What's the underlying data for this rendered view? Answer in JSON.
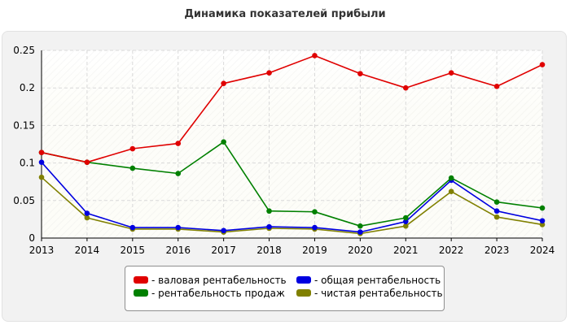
{
  "title": "Динамика показателей прибыли",
  "chart_data": {
    "type": "line",
    "title": "Динамика показателей прибыли",
    "xlabel": "",
    "ylabel": "",
    "x": [
      "2013",
      "2014",
      "2015",
      "2016",
      "2017",
      "2018",
      "2019",
      "2020",
      "2021",
      "2022",
      "2023",
      "2024"
    ],
    "ylim": [
      0,
      0.25
    ],
    "yticks": [
      "0",
      "0.05",
      "0.1",
      "0.15",
      "0.2",
      "0.25"
    ],
    "grid": true,
    "legend_position": "bottom-center",
    "series": [
      {
        "name": "- валовая рентабельность",
        "color": "#e00000",
        "values": [
          0.114,
          0.101,
          0.119,
          0.126,
          0.206,
          0.22,
          0.243,
          0.219,
          0.2,
          0.22,
          0.202,
          0.231
        ]
      },
      {
        "name": "- общая рентабельность",
        "color": "#0000e0",
        "values": [
          0.101,
          0.033,
          0.014,
          0.014,
          0.01,
          0.015,
          0.014,
          0.008,
          0.022,
          0.077,
          0.036,
          0.023
        ]
      },
      {
        "name": "- рентабельность продаж",
        "color": "#008000",
        "values": [
          0.114,
          0.101,
          0.093,
          0.086,
          0.128,
          0.036,
          0.035,
          0.016,
          0.027,
          0.08,
          0.048,
          0.04
        ]
      },
      {
        "name": "- чистая рентабельность",
        "color": "#808000",
        "values": [
          0.081,
          0.027,
          0.012,
          0.012,
          0.008,
          0.013,
          0.012,
          0.006,
          0.016,
          0.062,
          0.028,
          0.018
        ]
      }
    ]
  }
}
